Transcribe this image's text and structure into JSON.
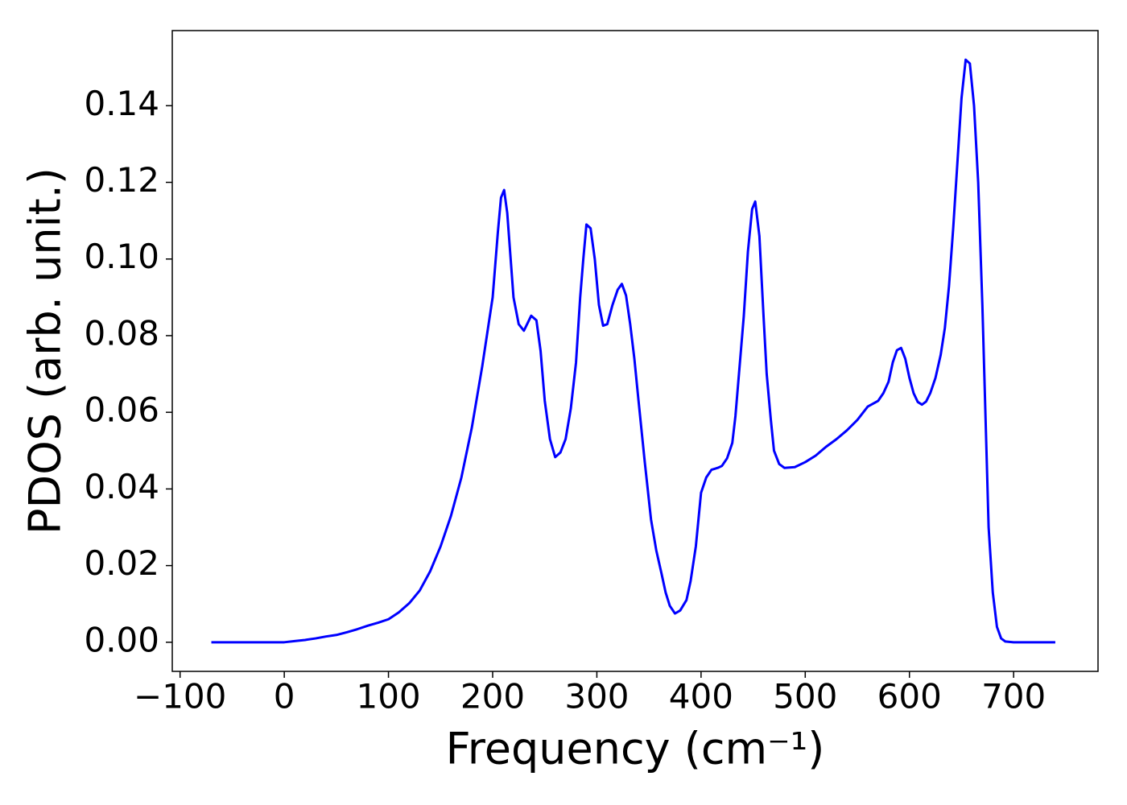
{
  "chart_data": {
    "type": "line",
    "xlabel": "Frequency (cm⁻¹)",
    "ylabel": "PDOS (arb. unit.)",
    "xlim": [
      -107.5,
      781
    ],
    "ylim": [
      -0.0076,
      0.1596
    ],
    "xticks": [
      {
        "value": -100,
        "label": "−100"
      },
      0,
      100,
      200,
      300,
      400,
      500,
      600,
      700
    ],
    "yticks": [
      {
        "value": 0,
        "label": "0.00"
      },
      {
        "value": 0.02,
        "label": "0.02"
      },
      {
        "value": 0.04,
        "label": "0.04"
      },
      {
        "value": 0.06,
        "label": "0.06"
      },
      {
        "value": 0.08,
        "label": "0.08"
      },
      {
        "value": 0.1,
        "label": "0.10"
      },
      {
        "value": 0.12,
        "label": "0.12"
      },
      {
        "value": 0.14,
        "label": "0.14"
      }
    ],
    "grid": false,
    "series": [
      {
        "color": "#0000ff",
        "x": [
          -70,
          -50,
          -30,
          -10,
          0,
          10,
          20,
          30,
          40,
          50,
          60,
          70,
          80,
          90,
          100,
          110,
          120,
          130,
          140,
          150,
          160,
          170,
          180,
          190,
          200,
          205,
          208,
          211,
          214,
          220,
          225,
          230,
          237,
          242,
          246,
          250,
          255,
          260,
          265,
          270,
          275,
          280,
          284,
          287,
          290,
          294,
          298,
          302,
          306,
          310,
          315,
          320,
          324,
          328,
          332,
          336,
          340,
          346,
          352,
          357,
          362,
          366,
          370,
          375,
          380,
          386,
          390,
          395,
          400,
          405,
          410,
          416,
          420,
          425,
          430,
          433,
          437,
          441,
          445,
          449,
          452,
          456,
          460,
          463,
          467,
          470,
          475,
          480,
          490,
          500,
          510,
          520,
          530,
          540,
          550,
          560,
          570,
          575,
          580,
          584,
          588,
          592,
          596,
          600,
          604,
          608,
          612,
          616,
          620,
          625,
          630,
          634,
          638,
          642,
          646,
          650,
          654,
          658,
          662,
          666,
          670,
          676,
          680,
          684,
          688,
          692,
          700,
          720,
          740
        ],
        "values": [
          0,
          0,
          0,
          0,
          0,
          0.0003,
          0.0006,
          0.001,
          0.0015,
          0.0019,
          0.0026,
          0.0034,
          0.0043,
          0.0051,
          0.006,
          0.0078,
          0.0102,
          0.0135,
          0.0185,
          0.025,
          0.033,
          0.043,
          0.056,
          0.072,
          0.09,
          0.107,
          0.116,
          0.118,
          0.112,
          0.09,
          0.083,
          0.0813,
          0.0852,
          0.084,
          0.076,
          0.063,
          0.053,
          0.0483,
          0.0495,
          0.053,
          0.061,
          0.073,
          0.09,
          0.1,
          0.109,
          0.108,
          0.1,
          0.088,
          0.0826,
          0.083,
          0.088,
          0.092,
          0.0935,
          0.0905,
          0.083,
          0.074,
          0.063,
          0.047,
          0.032,
          0.024,
          0.018,
          0.013,
          0.0095,
          0.0075,
          0.0083,
          0.011,
          0.016,
          0.025,
          0.039,
          0.043,
          0.045,
          0.0455,
          0.046,
          0.048,
          0.052,
          0.059,
          0.072,
          0.085,
          0.102,
          0.113,
          0.115,
          0.106,
          0.085,
          0.07,
          0.058,
          0.05,
          0.0465,
          0.0455,
          0.0457,
          0.047,
          0.0487,
          0.051,
          0.053,
          0.0553,
          0.058,
          0.0615,
          0.063,
          0.065,
          0.068,
          0.073,
          0.0762,
          0.0768,
          0.074,
          0.069,
          0.065,
          0.0627,
          0.062,
          0.0628,
          0.065,
          0.069,
          0.075,
          0.082,
          0.093,
          0.108,
          0.125,
          0.142,
          0.152,
          0.151,
          0.14,
          0.12,
          0.088,
          0.03,
          0.013,
          0.004,
          0.001,
          0.0002,
          0,
          0,
          0
        ]
      }
    ]
  }
}
